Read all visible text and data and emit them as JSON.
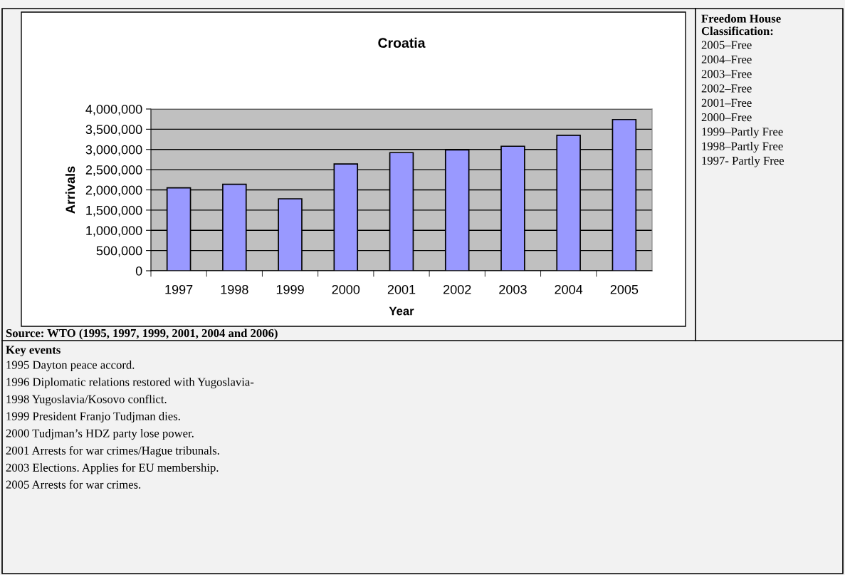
{
  "chart_data": {
    "type": "bar",
    "title": "Croatia",
    "xlabel": "Year",
    "ylabel": "Arrivals",
    "categories": [
      "1997",
      "1998",
      "1999",
      "2000",
      "2001",
      "2002",
      "2003",
      "2004",
      "2005"
    ],
    "values": [
      2050000,
      2140000,
      1780000,
      2640000,
      2920000,
      2990000,
      3080000,
      3350000,
      3740000
    ],
    "color": "#9999ff",
    "ylim": [
      0,
      4000000
    ],
    "yticks": [
      {
        "value": 0,
        "label": "0"
      },
      {
        "value": 500000,
        "label": "500,000"
      },
      {
        "value": 1000000,
        "label": "1,000,000"
      },
      {
        "value": 1500000,
        "label": "1,500,000"
      },
      {
        "value": 2000000,
        "label": "2,000,000"
      },
      {
        "value": 2500000,
        "label": "2,500,000"
      },
      {
        "value": 3000000,
        "label": "3,000,000"
      },
      {
        "value": 3500000,
        "label": "3,500,000"
      },
      {
        "value": 4000000,
        "label": "4,000,000"
      }
    ],
    "grid": "y",
    "annotations": [
      "Freedom House Classification:",
      "2005–Free",
      "2004–Free",
      "2003–Free",
      "2002–Free",
      "2001–Free",
      "2000–Free",
      "1999–Partly Free",
      "1998–Partly Free",
      "1997- Partly Free",
      "Source: WTO (1995, 1997, 1999, 2001, 2004 and 2006)",
      "Key events",
      "1995 Dayton peace accord.",
      "1996 Diplomatic relations restored with Yugoslavia-",
      "1998 Yugoslavia/Kosovo conflict.",
      "1999 President Franjo Tudjman dies.",
      "2000 Tudjman’s HDZ party lose power.",
      "2001 Arrests for war crimes/Hague tribunals.",
      "2003 Elections. Applies for EU membership.",
      "2005 Arrests for war crimes."
    ]
  }
}
